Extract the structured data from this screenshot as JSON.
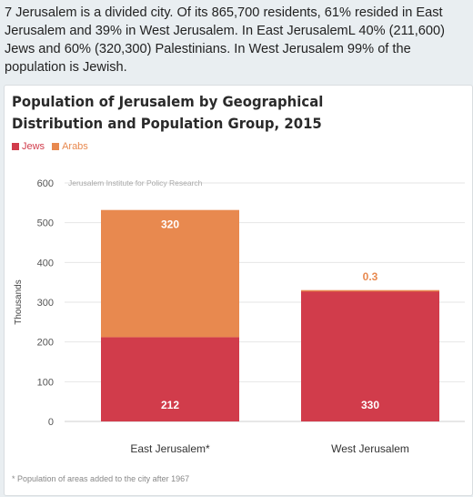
{
  "intro_text": "7 Jerusalem is a divided city. Of its 865,700 residents, 61% resided in East Jerusalem and 39% in West Jerusalem. In East JerusalemL 40% (211,600) Jews and 60% (320,300) Palestinians. In West Jerusalem 99% of the population is Jewish.",
  "chart_data": {
    "type": "bar",
    "stacked": true,
    "title": "Population of Jerusalem by Geographical Distribution and Population Group, 2015",
    "source": "Jerusalem Institute for Policy Research",
    "xlabel": "",
    "ylabel": "Thousands",
    "ylim": [
      0,
      600
    ],
    "yticks": [
      0,
      100,
      200,
      300,
      400,
      500,
      600
    ],
    "grid": true,
    "legend_position": "top-left",
    "categories": [
      "East Jerusalem*",
      "West Jerusalem"
    ],
    "series": [
      {
        "name": "Jews",
        "color": "#d13c4b",
        "values": [
          212,
          330
        ],
        "labels": [
          "212",
          "330"
        ]
      },
      {
        "name": "Arabs",
        "color": "#e8894f",
        "values": [
          320,
          0.3
        ],
        "labels": [
          "320",
          "0.3"
        ]
      }
    ],
    "footnote": "* Population of areas added to the city after 1967"
  }
}
